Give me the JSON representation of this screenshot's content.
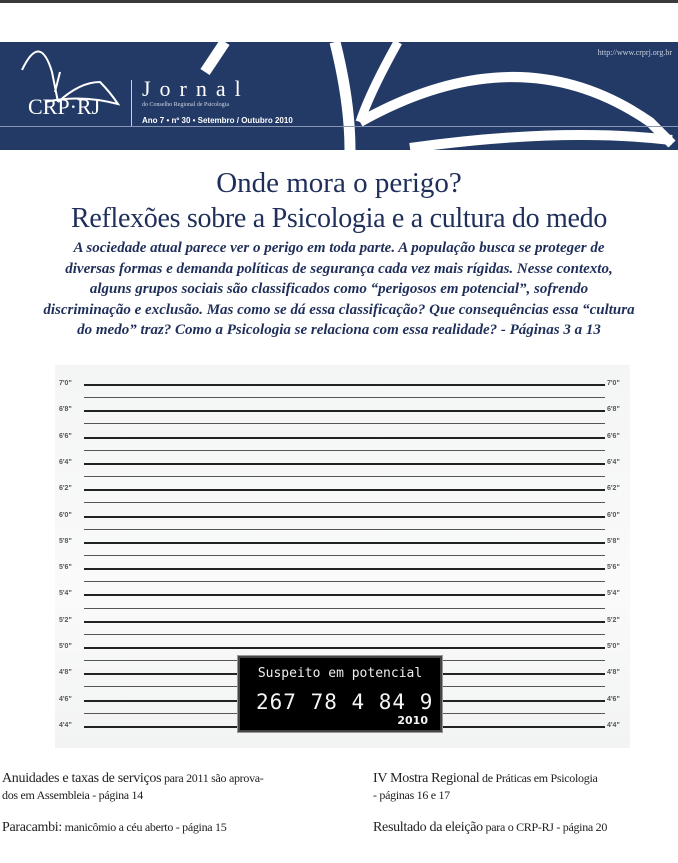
{
  "header": {
    "url": "http://www.crprj.org.br",
    "logo_text": "CRP·RJ",
    "journal_title": "Jornal",
    "journal_subtitle": "do Conselho Regional de Psicologia",
    "issue": "Ano 7 • nº 30 • Setembro / Outubro 2010",
    "colors": {
      "banner": "#233a66",
      "title": "#1f2f5a"
    }
  },
  "headline": {
    "line1": "Onde mora o perigo?",
    "line2": "Reflexões sobre a Psicologia e a cultura do medo",
    "lead_lines": [
      "A sociedade atual parece ver o perigo em toda parte. A população busca se proteger de",
      "diversas formas e demanda políticas de segurança cada vez mais rígidas. Nesse contexto,",
      "alguns grupos sociais são classificados como “perigosos em potencial”, sofrendo",
      "discriminação e exclusão. Mas como se dá essa classificação? Que consequências essa “cultura",
      "do medo” traz? Como a Psicologia se relaciona com essa realidade? - Páginas 3 a 13"
    ]
  },
  "height_chart": {
    "labels": [
      "7'0\"",
      "6'8\"",
      "6'6\"",
      "6'4\"",
      "6'2\"",
      "6'0\"",
      "5'8\"",
      "5'6\"",
      "5'4\"",
      "5'2\"",
      "5'0\"",
      "4'8\"",
      "4'6\"",
      "4'4\""
    ],
    "plate": {
      "caption": "Suspeito em potencial",
      "number": "267 78 4 84 9",
      "year": "2010"
    }
  },
  "items": [
    {
      "bold": "Anuidades e taxas de serviços",
      "rest": " para 2011 são aprova-",
      "line2": "dos em Assembleia - página 14"
    },
    {
      "bold": "IV Mostra Regional",
      "rest": " de Práticas em Psicologia",
      "line2": "- páginas 16 e 17"
    },
    {
      "bold": "Paracambi:",
      "rest": " manicômio a céu aberto - página 15"
    },
    {
      "bold": "Resultado da eleição",
      "rest": " para o CRP-RJ - página 20"
    }
  ]
}
